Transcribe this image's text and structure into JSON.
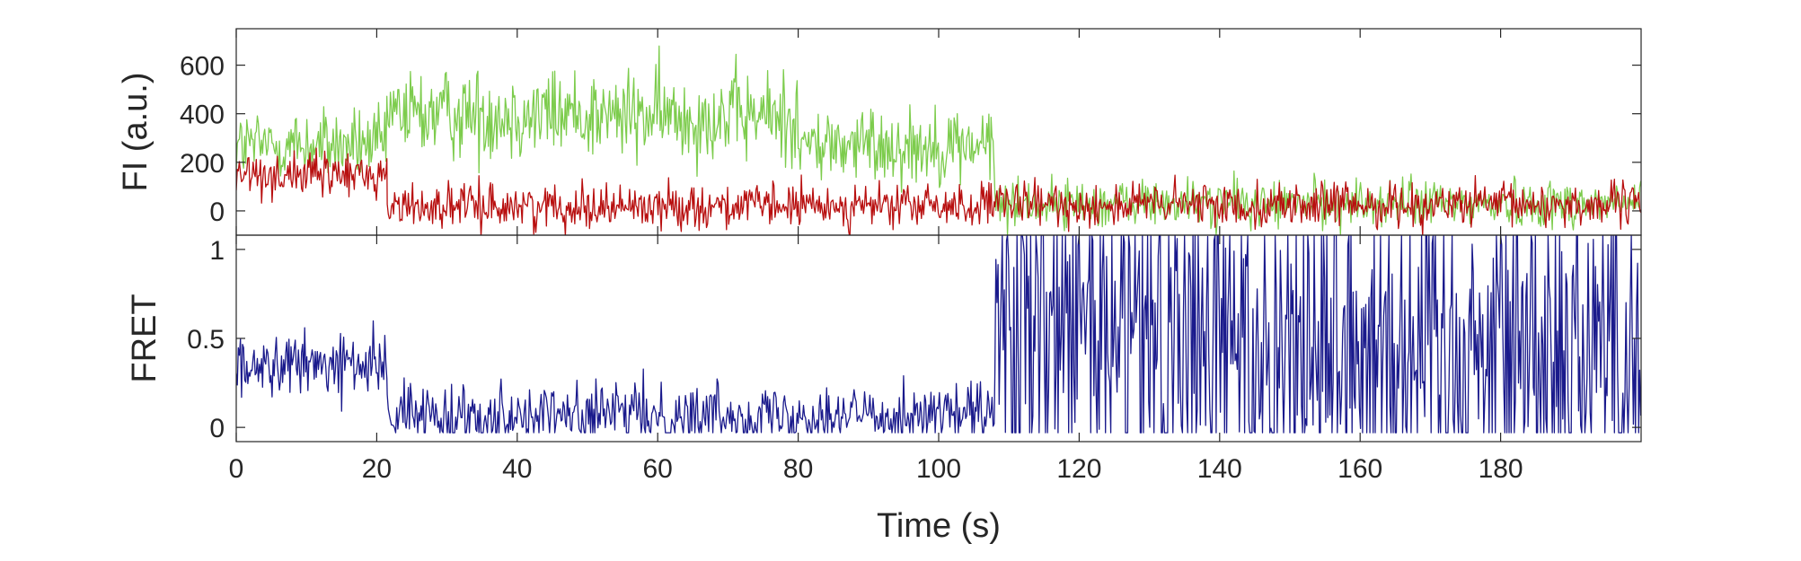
{
  "chart_data": [
    {
      "type": "line",
      "panel": "top",
      "ylabel": "FI (a.u.)",
      "xlabel": "",
      "xlim": [
        0,
        200
      ],
      "ylim": [
        -100,
        750
      ],
      "yticks": [
        0,
        200,
        400,
        600
      ],
      "ytick_labels": [
        "0",
        "200",
        "400",
        "600"
      ],
      "xticks": [
        0,
        20,
        40,
        60,
        80,
        100,
        120,
        140,
        160,
        180
      ],
      "xtick_labels": [
        "",
        "",
        "",
        "",
        "",
        "",
        "",
        "",
        "",
        ""
      ],
      "grid": false,
      "legend": "none",
      "series": [
        {
          "color": "#7dcc4d",
          "segments": [
            {
              "x": [
                0,
                21.5
              ],
              "mean": 270,
              "noise": 75
            },
            {
              "x": [
                21.5,
                51.5
              ],
              "mean": 400,
              "noise": 95
            },
            {
              "x": [
                51.5,
                80
              ],
              "mean": 390,
              "noise": 95
            },
            {
              "x": [
                80,
                108
              ],
              "mean": 270,
              "noise": 80
            },
            {
              "x": [
                108,
                200
              ],
              "mean": 30,
              "noise": 50
            }
          ]
        },
        {
          "color": "#b80f0f",
          "segments": [
            {
              "x": [
                0,
                21.5
              ],
              "mean": 150,
              "noise": 45
            },
            {
              "x": [
                21.5,
                108
              ],
              "mean": 20,
              "noise": 45
            },
            {
              "x": [
                108,
                200
              ],
              "mean": 25,
              "noise": 45
            }
          ]
        }
      ]
    },
    {
      "type": "line",
      "panel": "bottom",
      "ylabel": "FRET",
      "xlabel": "Time (s)",
      "xlim": [
        0,
        200
      ],
      "ylim": [
        -0.08,
        1.08
      ],
      "yticks": [
        0,
        0.5,
        1
      ],
      "ytick_labels": [
        "0",
        "0.5",
        "1"
      ],
      "xticks": [
        0,
        20,
        40,
        60,
        80,
        100,
        120,
        140,
        160,
        180
      ],
      "xtick_labels": [
        "0",
        "20",
        "40",
        "60",
        "80",
        "100",
        "120",
        "140",
        "160",
        "180"
      ],
      "grid": false,
      "legend": "none",
      "series": [
        {
          "color": "#1a1a8c",
          "segments": [
            {
              "x": [
                0,
                21.5
              ],
              "mean": 0.35,
              "noise": 0.09
            },
            {
              "x": [
                21.5,
                108
              ],
              "mean": 0.07,
              "noise": 0.09
            },
            {
              "x": [
                108,
                200
              ],
              "mean": 0.5,
              "noise": 0.6
            }
          ]
        }
      ]
    }
  ]
}
